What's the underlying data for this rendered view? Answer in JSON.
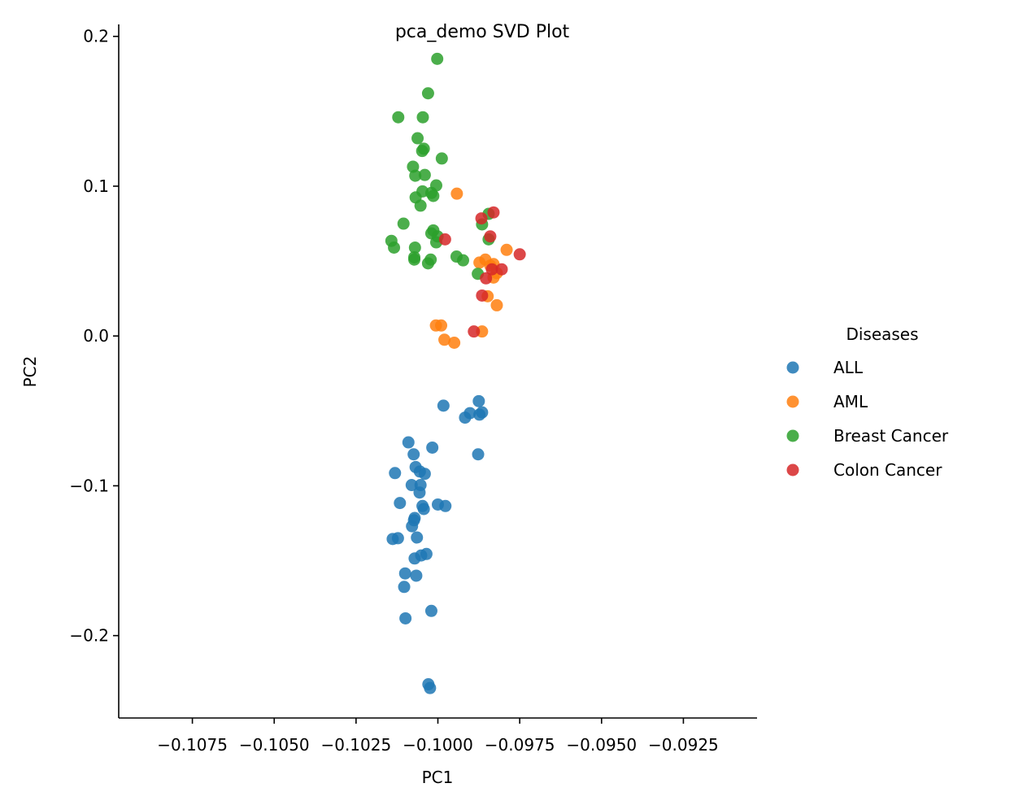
{
  "chart_data": {
    "type": "scatter",
    "title": "pca_demo SVD Plot",
    "xlabel": "PC1",
    "ylabel": "PC2",
    "xlim": [
      -0.10975,
      -0.09025
    ],
    "ylim": [
      -0.255,
      0.208
    ],
    "x_ticks": [
      -0.1075,
      -0.105,
      -0.1025,
      -0.1,
      -0.0975,
      -0.095,
      -0.0925
    ],
    "x_tick_labels": [
      "−0.1075",
      "−0.1050",
      "−0.1025",
      "−0.1000",
      "−0.0975",
      "−0.0950",
      "−0.0925"
    ],
    "y_ticks": [
      -0.2,
      -0.1,
      0.0,
      0.1,
      0.2
    ],
    "y_tick_labels": [
      "−0.2",
      "−0.1",
      "0.0",
      "0.1",
      "0.2"
    ],
    "grid": false,
    "legend": {
      "title": "Diseases",
      "placement": "right"
    },
    "series": [
      {
        "name": "ALL",
        "color": "#1f77b4",
        "points": [
          [
            -0.09983,
            -0.0465
          ],
          [
            -0.09917,
            -0.0545
          ],
          [
            -0.09902,
            -0.0515
          ],
          [
            -0.09875,
            -0.0435
          ],
          [
            -0.09873,
            -0.0525
          ],
          [
            -0.09865,
            -0.051
          ],
          [
            -0.09877,
            -0.079
          ],
          [
            -0.10017,
            -0.0745
          ],
          [
            -0.1009,
            -0.071
          ],
          [
            -0.10074,
            -0.079
          ],
          [
            -0.10068,
            -0.0875
          ],
          [
            -0.10055,
            -0.0905
          ],
          [
            -0.1004,
            -0.092
          ],
          [
            -0.10131,
            -0.0915
          ],
          [
            -0.1008,
            -0.0995
          ],
          [
            -0.10053,
            -0.0995
          ],
          [
            -0.10056,
            -0.1045
          ],
          [
            -0.10116,
            -0.1115
          ],
          [
            -0.10047,
            -0.1135
          ],
          [
            -0.10043,
            -0.1155
          ],
          [
            -0.1,
            -0.1125
          ],
          [
            -0.09977,
            -0.1135
          ],
          [
            -0.10071,
            -0.1215
          ],
          [
            -0.10073,
            -0.123
          ],
          [
            -0.10079,
            -0.127
          ],
          [
            -0.10138,
            -0.1355
          ],
          [
            -0.10122,
            -0.135
          ],
          [
            -0.10064,
            -0.1345
          ],
          [
            -0.10071,
            -0.1485
          ],
          [
            -0.10051,
            -0.1465
          ],
          [
            -0.10035,
            -0.1455
          ],
          [
            -0.101,
            -0.1585
          ],
          [
            -0.10066,
            -0.16
          ],
          [
            -0.10103,
            -0.1675
          ],
          [
            -0.10099,
            -0.1885
          ],
          [
            -0.1002,
            -0.1835
          ],
          [
            -0.10029,
            -0.2325
          ],
          [
            -0.10024,
            -0.235
          ]
        ]
      },
      {
        "name": "AML",
        "color": "#ff7f0e",
        "points": [
          [
            -0.09942,
            0.095
          ],
          [
            -0.09873,
            0.049
          ],
          [
            -0.09855,
            0.051
          ],
          [
            -0.0984,
            0.047
          ],
          [
            -0.0983,
            0.048
          ],
          [
            -0.0982,
            0.042
          ],
          [
            -0.0983,
            0.039
          ],
          [
            -0.0979,
            0.0575
          ],
          [
            -0.09848,
            0.0265
          ],
          [
            -0.0982,
            0.0205
          ],
          [
            -0.10006,
            0.007
          ],
          [
            -0.0999,
            0.007
          ],
          [
            -0.0998,
            -0.0025
          ],
          [
            -0.0995,
            -0.0045
          ],
          [
            -0.09865,
            0.003
          ]
        ]
      },
      {
        "name": "Breast Cancer",
        "color": "#2ca02c",
        "points": [
          [
            -0.10002,
            0.185
          ],
          [
            -0.1003,
            0.162
          ],
          [
            -0.10121,
            0.146
          ],
          [
            -0.10046,
            0.146
          ],
          [
            -0.10062,
            0.132
          ],
          [
            -0.10043,
            0.125
          ],
          [
            -0.10048,
            0.1235
          ],
          [
            -0.09988,
            0.1185
          ],
          [
            -0.10076,
            0.113
          ],
          [
            -0.10069,
            0.107
          ],
          [
            -0.1004,
            0.1075
          ],
          [
            -0.10005,
            0.1005
          ],
          [
            -0.10047,
            0.0965
          ],
          [
            -0.1002,
            0.0955
          ],
          [
            -0.10014,
            0.0935
          ],
          [
            -0.10068,
            0.0925
          ],
          [
            -0.10053,
            0.087
          ],
          [
            -0.10105,
            0.075
          ],
          [
            -0.10014,
            0.0705
          ],
          [
            -0.1002,
            0.0685
          ],
          [
            -0.10001,
            0.0665
          ],
          [
            -0.10005,
            0.0625
          ],
          [
            -0.10142,
            0.0635
          ],
          [
            -0.10134,
            0.059
          ],
          [
            -0.1007,
            0.059
          ],
          [
            -0.10072,
            0.0525
          ],
          [
            -0.10072,
            0.051
          ],
          [
            -0.10022,
            0.051
          ],
          [
            -0.1003,
            0.0485
          ],
          [
            -0.09943,
            0.053
          ],
          [
            -0.09923,
            0.0505
          ],
          [
            -0.09878,
            0.0415
          ],
          [
            -0.09865,
            0.0745
          ],
          [
            -0.09845,
            0.0815
          ],
          [
            -0.09845,
            0.0645
          ]
        ]
      },
      {
        "name": "Colon Cancer",
        "color": "#d62728",
        "points": [
          [
            -0.09978,
            0.0645
          ],
          [
            -0.09867,
            0.0785
          ],
          [
            -0.0983,
            0.0825
          ],
          [
            -0.0984,
            0.0665
          ],
          [
            -0.09835,
            0.0445
          ],
          [
            -0.09805,
            0.0445
          ],
          [
            -0.09853,
            0.0385
          ],
          [
            -0.0975,
            0.0545
          ],
          [
            -0.09865,
            0.027
          ],
          [
            -0.0989,
            0.003
          ]
        ]
      }
    ]
  }
}
